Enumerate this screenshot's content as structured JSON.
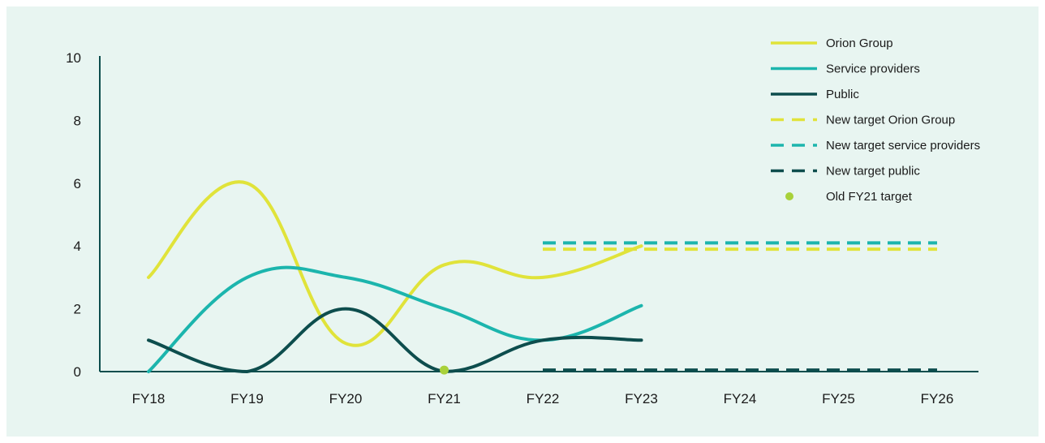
{
  "chart_data": {
    "type": "line",
    "categories": [
      "FY18",
      "FY19",
      "FY20",
      "FY21",
      "FY22",
      "FY23",
      "FY24",
      "FY25",
      "FY26"
    ],
    "ylim": [
      0,
      10
    ],
    "yticks": [
      0,
      2,
      4,
      6,
      8,
      10
    ],
    "grid": false,
    "legend_position": "top-right",
    "series": [
      {
        "name": "Orion Group",
        "color": "#e0e33a",
        "style": "solid",
        "points": [
          [
            "FY18",
            3
          ],
          [
            "FY19",
            6
          ],
          [
            "FY20",
            0.9
          ],
          [
            "FY21",
            3.4
          ],
          [
            "FY22",
            3
          ],
          [
            "FY23",
            4
          ]
        ]
      },
      {
        "name": "Service providers",
        "color": "#1cb5ad",
        "style": "solid",
        "points": [
          [
            "FY18",
            0
          ],
          [
            "FY19",
            3
          ],
          [
            "FY20",
            3
          ],
          [
            "FY21",
            2
          ],
          [
            "FY22",
            1
          ],
          [
            "FY23",
            2.1
          ]
        ]
      },
      {
        "name": "Public",
        "color": "#0d4d4d",
        "style": "solid",
        "points": [
          [
            "FY18",
            1
          ],
          [
            "FY19",
            0
          ],
          [
            "FY20",
            2
          ],
          [
            "FY21",
            0
          ],
          [
            "FY22",
            1
          ],
          [
            "FY23",
            1
          ]
        ]
      },
      {
        "name": "New target Orion Group",
        "color": "#e0e33a",
        "style": "dashed",
        "points": [
          [
            "FY22",
            3.9
          ],
          [
            "FY26",
            3.9
          ]
        ]
      },
      {
        "name": "New target service providers",
        "color": "#1cb5ad",
        "style": "dashed",
        "points": [
          [
            "FY22",
            4.1
          ],
          [
            "FY26",
            4.1
          ]
        ]
      },
      {
        "name": "New target public",
        "color": "#0d4d4d",
        "style": "dashed",
        "points": [
          [
            "FY22",
            0.05
          ],
          [
            "FY26",
            0.05
          ]
        ]
      },
      {
        "name": "Old FY21 target",
        "color": "#a8d13a",
        "style": "point",
        "points": [
          [
            "FY21",
            0.05
          ]
        ]
      }
    ]
  }
}
